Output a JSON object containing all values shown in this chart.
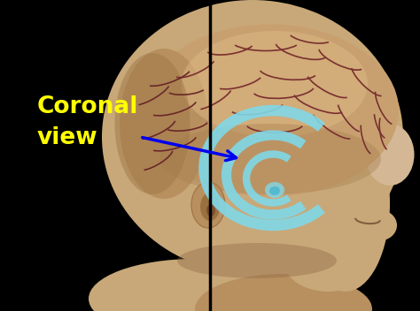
{
  "bg_color": "#000000",
  "skin_light": "#d4b896",
  "skin_mid": "#c8a878",
  "skin_dark": "#b89060",
  "skin_shadow": "#a07848",
  "brain_base": "#c8a070",
  "brain_highlight": "#ddb882",
  "brain_shadow": "#a88050",
  "gyri_color": "#7a3030",
  "label_text_line1": "Coronal",
  "label_text_line2": "view",
  "label_color": "#ffff00",
  "label_fontsize": 19,
  "label_fontweight": "bold",
  "arrow_color": "#0000ee",
  "line_color": "#000000",
  "ring_color": "#80d8e8",
  "ring_color2": "#a0e8f8",
  "fig_width": 4.74,
  "fig_height": 3.52,
  "dpi": 100
}
